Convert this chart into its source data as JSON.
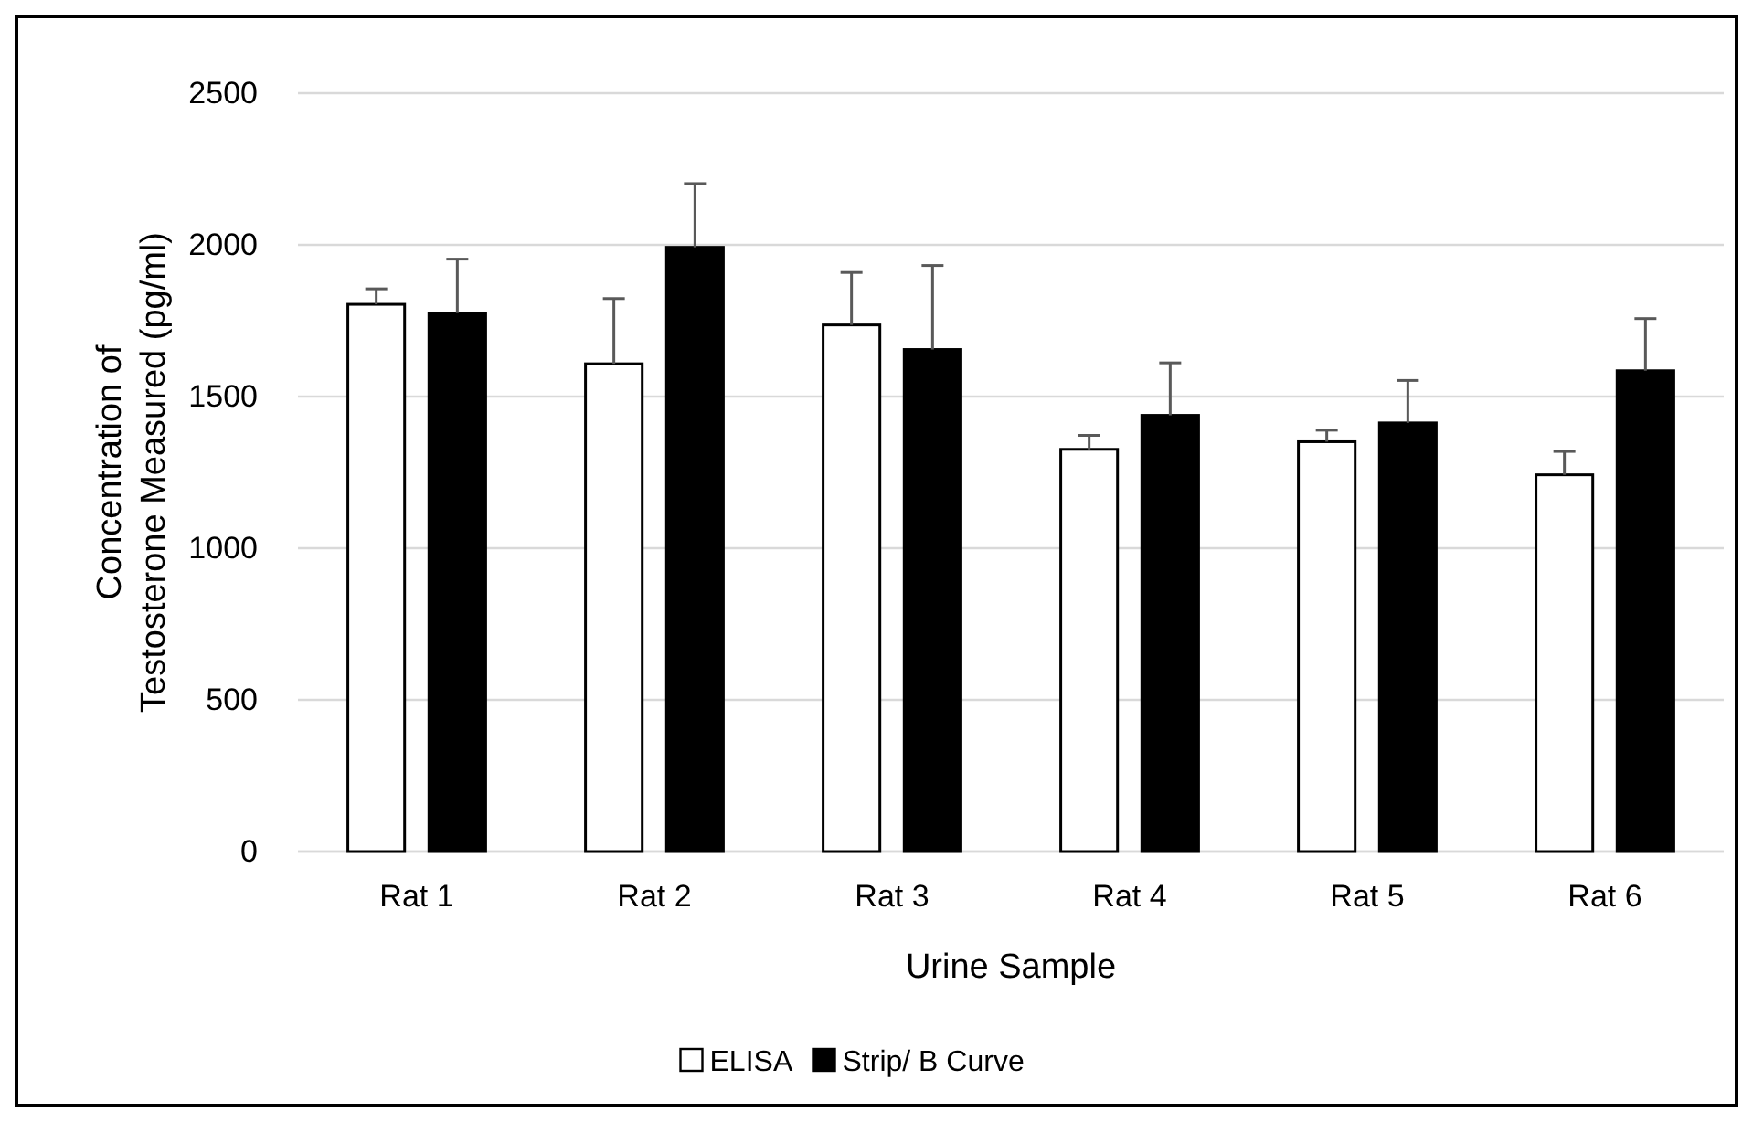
{
  "chart_data": {
    "type": "bar",
    "xlabel": "Urine Sample",
    "ylabel": "Concentration of\nTestosterone Measured (pg/ml)",
    "categories": [
      "Rat 1",
      "Rat 2",
      "Rat 3",
      "Rat 4",
      "Rat 5",
      "Rat 6"
    ],
    "series": [
      {
        "name": "ELISA",
        "color": "#ffffff",
        "values": [
          1804,
          1608,
          1736,
          1326,
          1351,
          1242
        ],
        "errors": [
          [
            1804,
            1855
          ],
          [
            1608,
            1823
          ],
          [
            1736,
            1909
          ],
          [
            1326,
            1372
          ],
          [
            1351,
            1389
          ],
          [
            1242,
            1319
          ]
        ]
      },
      {
        "name": "Strip/ B Curve",
        "color": "#000000",
        "values": [
          1775,
          1992,
          1655,
          1438,
          1413,
          1585
        ],
        "errors": [
          [
            1775,
            1953
          ],
          [
            1992,
            2202
          ],
          [
            1655,
            1932
          ],
          [
            1438,
            1611
          ],
          [
            1413,
            1553
          ],
          [
            1585,
            1757
          ]
        ]
      }
    ],
    "ylim": [
      0,
      2500
    ],
    "yticks": [
      0,
      500,
      1000,
      1500,
      2000,
      2500
    ],
    "grid": "y",
    "legend": "bottom"
  }
}
